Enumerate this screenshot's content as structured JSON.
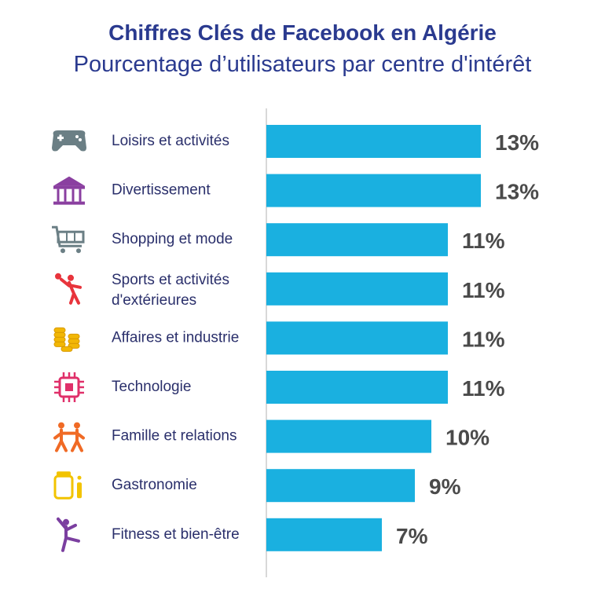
{
  "title": "Chiffres Clés de Facebook en Algérie",
  "subtitle": "Pourcentage d’utilisateurs par centre d'intérêt",
  "colors": {
    "bar": "#1ab0e0",
    "title": "#2a3a8f",
    "axis": "#cccccc"
  },
  "chart_data": {
    "type": "bar",
    "orientation": "horizontal",
    "title": "Chiffres Clés de Facebook en Algérie",
    "subtitle": "Pourcentage d’utilisateurs par centre d'intérêt",
    "xlabel": "",
    "ylabel": "",
    "xlim": [
      0,
      13
    ],
    "grid": false,
    "categories": [
      {
        "label": [
          "Loisirs et activités"
        ],
        "value": 13,
        "value_label": "13%",
        "icon": "gamepad-icon",
        "icon_color": "#6b7f85"
      },
      {
        "label": [
          "Divertissement"
        ],
        "value": 13,
        "value_label": "13%",
        "icon": "carousel-icon",
        "icon_color": "#8a3fa0"
      },
      {
        "label": [
          "Shopping et mode"
        ],
        "value": 11,
        "value_label": "11%",
        "icon": "shopping-cart-icon",
        "icon_color": "#6b7f85"
      },
      {
        "label": [
          "Sports et activités",
          "d'extérieures"
        ],
        "value": 11,
        "value_label": "11%",
        "icon": "tennis-player-icon",
        "icon_color": "#e8343c"
      },
      {
        "label": [
          "Affaires et industrie"
        ],
        "value": 11,
        "value_label": "11%",
        "icon": "coin-stacks-icon",
        "icon_color": "#f2b705"
      },
      {
        "label": [
          "Technologie"
        ],
        "value": 11,
        "value_label": "11%",
        "icon": "microchip-icon",
        "icon_color": "#e0306a"
      },
      {
        "label": [
          "Famille et relations"
        ],
        "value": 10,
        "value_label": "10%",
        "icon": "family-icon",
        "icon_color": "#f06a25"
      },
      {
        "label": [
          "Gastronomie"
        ],
        "value": 9,
        "value_label": "9%",
        "icon": "jar-icon",
        "icon_color": "#f2c300"
      },
      {
        "label": [
          "Fitness et bien-être"
        ],
        "value": 7,
        "value_label": "7%",
        "icon": "fitness-person-icon",
        "icon_color": "#7b3fa0"
      }
    ]
  }
}
